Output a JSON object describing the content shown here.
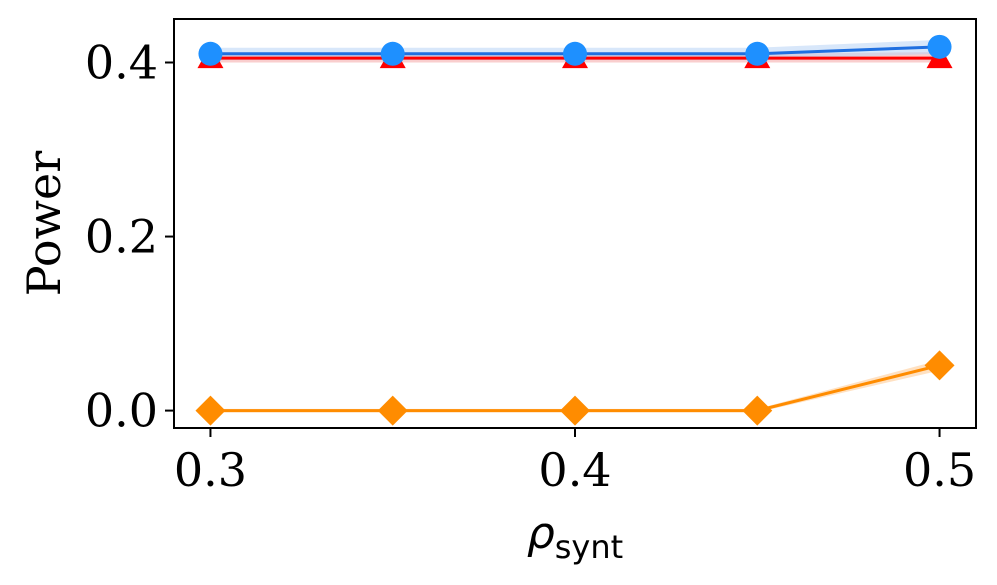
{
  "chart_data": {
    "type": "line",
    "xlabel": "ρ",
    "xlabel_subscript": "synt",
    "ylabel": "Power",
    "x": [
      0.3,
      0.35,
      0.4,
      0.45,
      0.5
    ],
    "xlim": [
      0.29,
      0.51
    ],
    "ylim": [
      -0.02,
      0.45
    ],
    "xticks": [
      0.3,
      0.4,
      0.5
    ],
    "xtick_labels": [
      "0.3",
      "0.4",
      "0.5"
    ],
    "yticks": [
      0.0,
      0.2,
      0.4
    ],
    "ytick_labels": [
      "0.0",
      "0.2",
      "0.4"
    ],
    "grid": false,
    "series": [
      {
        "marker": "triangle",
        "color": "#ff0000",
        "band_color": "#f4a6a6",
        "values": [
          0.405,
          0.405,
          0.405,
          0.405,
          0.405
        ],
        "band": [
          [
            0.4,
            0.41
          ],
          [
            0.4,
            0.41
          ],
          [
            0.4,
            0.41
          ],
          [
            0.4,
            0.41
          ],
          [
            0.4,
            0.412
          ]
        ]
      },
      {
        "marker": "circle",
        "color": "#1e90ff",
        "line_color": "#1f6fe0",
        "band_color": "#b8d4f5",
        "values": [
          0.41,
          0.41,
          0.41,
          0.41,
          0.418
        ],
        "band": [
          [
            0.403,
            0.417
          ],
          [
            0.403,
            0.417
          ],
          [
            0.403,
            0.417
          ],
          [
            0.403,
            0.417
          ],
          [
            0.41,
            0.426
          ]
        ]
      },
      {
        "marker": "diamond",
        "color": "#ff8c00",
        "band_color": "#ffc890",
        "values": [
          0.0,
          0.0,
          0.0,
          0.0,
          0.052
        ],
        "band": [
          [
            -0.002,
            0.002
          ],
          [
            -0.002,
            0.002
          ],
          [
            -0.002,
            0.002
          ],
          [
            -0.002,
            0.002
          ],
          [
            0.046,
            0.058
          ]
        ]
      }
    ]
  }
}
